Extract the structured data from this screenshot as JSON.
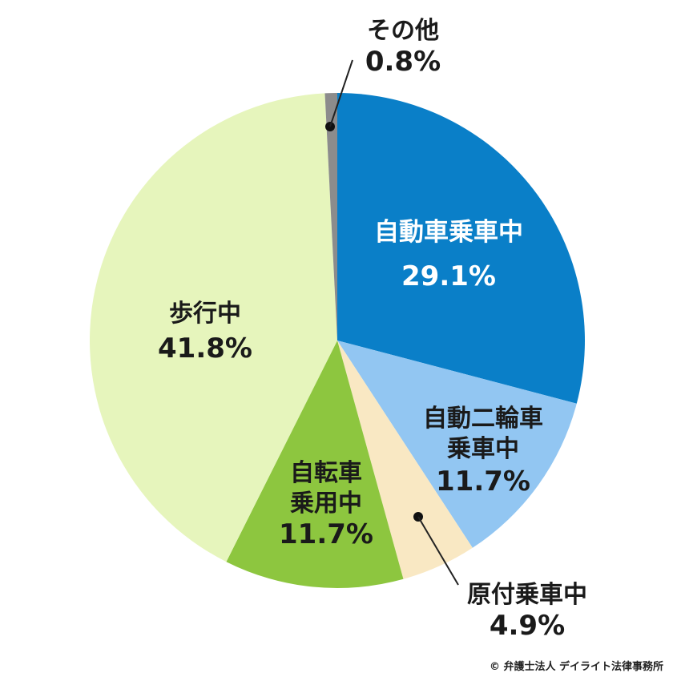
{
  "chart_data": {
    "type": "pie",
    "slices": [
      {
        "name": "自動車乗車中",
        "value": 29.1,
        "label": "29.1%",
        "color": "#0a7fc8"
      },
      {
        "name": "自動二輪車乗車中",
        "name_lines": [
          "自動二輪車",
          "乗車中"
        ],
        "value": 11.7,
        "label": "11.7%",
        "color": "#92c6f2"
      },
      {
        "name": "原付乗車中",
        "value": 4.9,
        "label": "4.9%",
        "color": "#f9e8c3"
      },
      {
        "name": "自転車乗用中",
        "name_lines": [
          "自転車",
          "乗用中"
        ],
        "value": 11.7,
        "label": "11.7%",
        "color": "#8dc63f"
      },
      {
        "name": "歩行中",
        "value": 41.8,
        "label": "41.8%",
        "color": "#e6f5bc"
      },
      {
        "name": "その他",
        "value": 0.8,
        "label": "0.8%",
        "color": "#8c8c8c"
      }
    ],
    "start": "top",
    "direction": "clockwise"
  },
  "credit": "© 弁護士法人 デイライト法律事務所"
}
